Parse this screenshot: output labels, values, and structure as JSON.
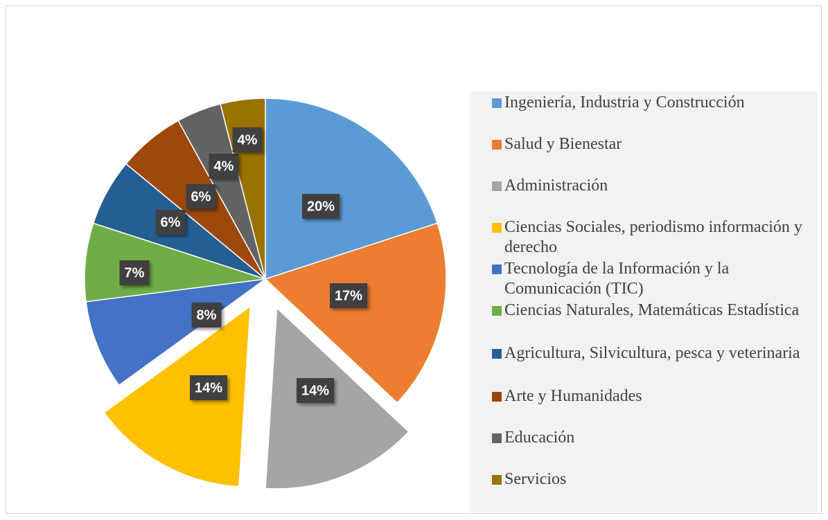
{
  "chart_data": {
    "type": "pie",
    "categories": [
      "Ingeniería, Industria y Construcción",
      "Salud y Bienestar",
      "Administración",
      "Ciencias Sociales, periodismo información y derecho",
      "Tecnología de la Información y la Comunicación (TIC)",
      "Ciencias Naturales, Matemáticas Estadística",
      "Agricultura, Silvicultura, pesca y veterinaria",
      "Arte y Humanidades",
      "Educación",
      "Servicios"
    ],
    "values": [
      20,
      17,
      14,
      14,
      8,
      7,
      6,
      6,
      4,
      4
    ],
    "value_labels": [
      "20%",
      "17%",
      "14%",
      "14%",
      "8%",
      "7%",
      "6%",
      "6%",
      "4%",
      "4%"
    ],
    "colors": [
      "#5b9bd5",
      "#ed7d31",
      "#a5a5a5",
      "#ffc000",
      "#4472c4",
      "#70ad47",
      "#255e91",
      "#9e480e",
      "#636363",
      "#997300"
    ],
    "legend": "right"
  }
}
